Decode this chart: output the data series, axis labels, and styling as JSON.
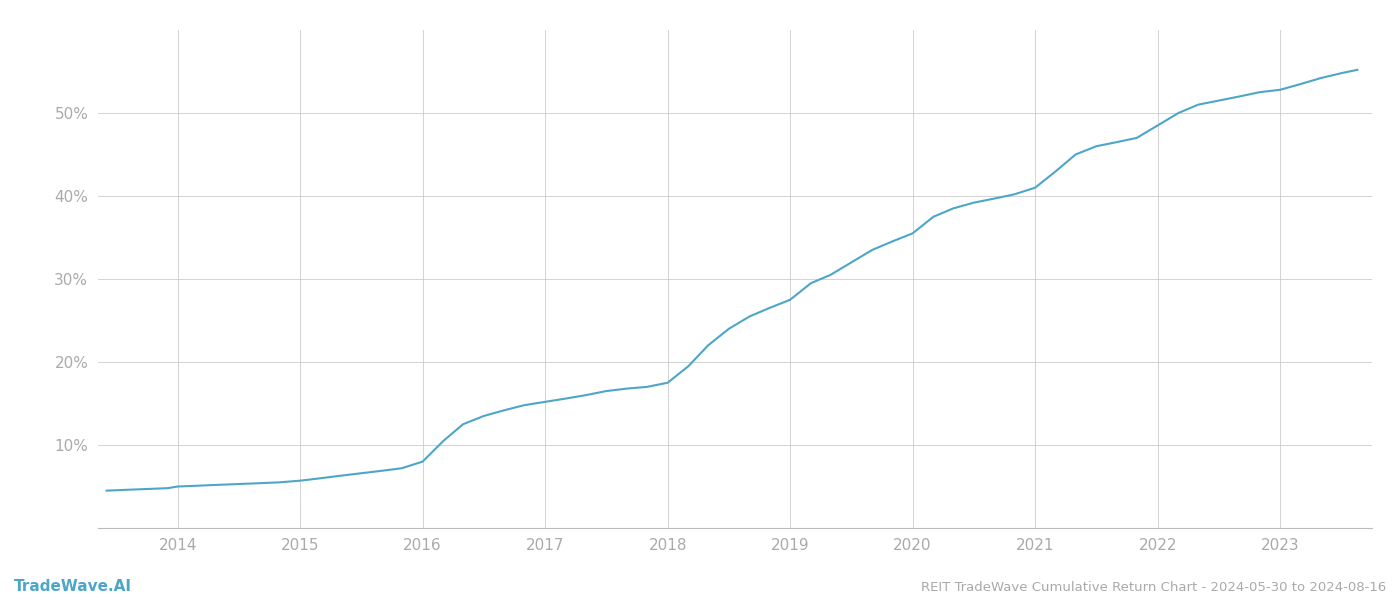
{
  "title": "REIT TradeWave Cumulative Return Chart - 2024-05-30 to 2024-08-16",
  "watermark": "TradeWave.AI",
  "line_color": "#4da6c8",
  "background_color": "#ffffff",
  "grid_color": "#cccccc",
  "tick_label_color": "#aaaaaa",
  "title_color": "#aaaaaa",
  "watermark_color": "#4da6c8",
  "x_years": [
    2014,
    2015,
    2016,
    2017,
    2018,
    2019,
    2020,
    2021,
    2022,
    2023
  ],
  "x_data": [
    2013.42,
    2013.58,
    2013.75,
    2013.92,
    2014.0,
    2014.17,
    2014.33,
    2014.5,
    2014.67,
    2014.83,
    2015.0,
    2015.17,
    2015.33,
    2015.5,
    2015.67,
    2015.83,
    2016.0,
    2016.17,
    2016.33,
    2016.5,
    2016.67,
    2016.83,
    2017.0,
    2017.17,
    2017.33,
    2017.5,
    2017.67,
    2017.83,
    2018.0,
    2018.17,
    2018.33,
    2018.5,
    2018.67,
    2018.83,
    2019.0,
    2019.17,
    2019.33,
    2019.5,
    2019.67,
    2019.83,
    2020.0,
    2020.17,
    2020.33,
    2020.5,
    2020.67,
    2020.83,
    2021.0,
    2021.17,
    2021.33,
    2021.5,
    2021.67,
    2021.83,
    2022.0,
    2022.17,
    2022.33,
    2022.5,
    2022.67,
    2022.83,
    2023.0,
    2023.17,
    2023.33,
    2023.5,
    2023.63
  ],
  "y_data": [
    4.5,
    4.6,
    4.7,
    4.8,
    5.0,
    5.1,
    5.2,
    5.3,
    5.4,
    5.5,
    5.7,
    6.0,
    6.3,
    6.6,
    6.9,
    7.2,
    8.0,
    10.5,
    12.5,
    13.5,
    14.2,
    14.8,
    15.2,
    15.6,
    16.0,
    16.5,
    16.8,
    17.0,
    17.5,
    19.5,
    22.0,
    24.0,
    25.5,
    26.5,
    27.5,
    29.5,
    30.5,
    32.0,
    33.5,
    34.5,
    35.5,
    37.5,
    38.5,
    39.2,
    39.7,
    40.2,
    41.0,
    43.0,
    45.0,
    46.0,
    46.5,
    47.0,
    48.5,
    50.0,
    51.0,
    51.5,
    52.0,
    52.5,
    52.8,
    53.5,
    54.2,
    54.8,
    55.2
  ],
  "ylim": [
    0,
    60
  ],
  "yticks": [
    10,
    20,
    30,
    40,
    50
  ],
  "ytick_labels": [
    "10%",
    "20%",
    "30%",
    "40%",
    "50%"
  ],
  "xlim_start": 2013.35,
  "xlim_end": 2023.75,
  "line_width": 1.5
}
